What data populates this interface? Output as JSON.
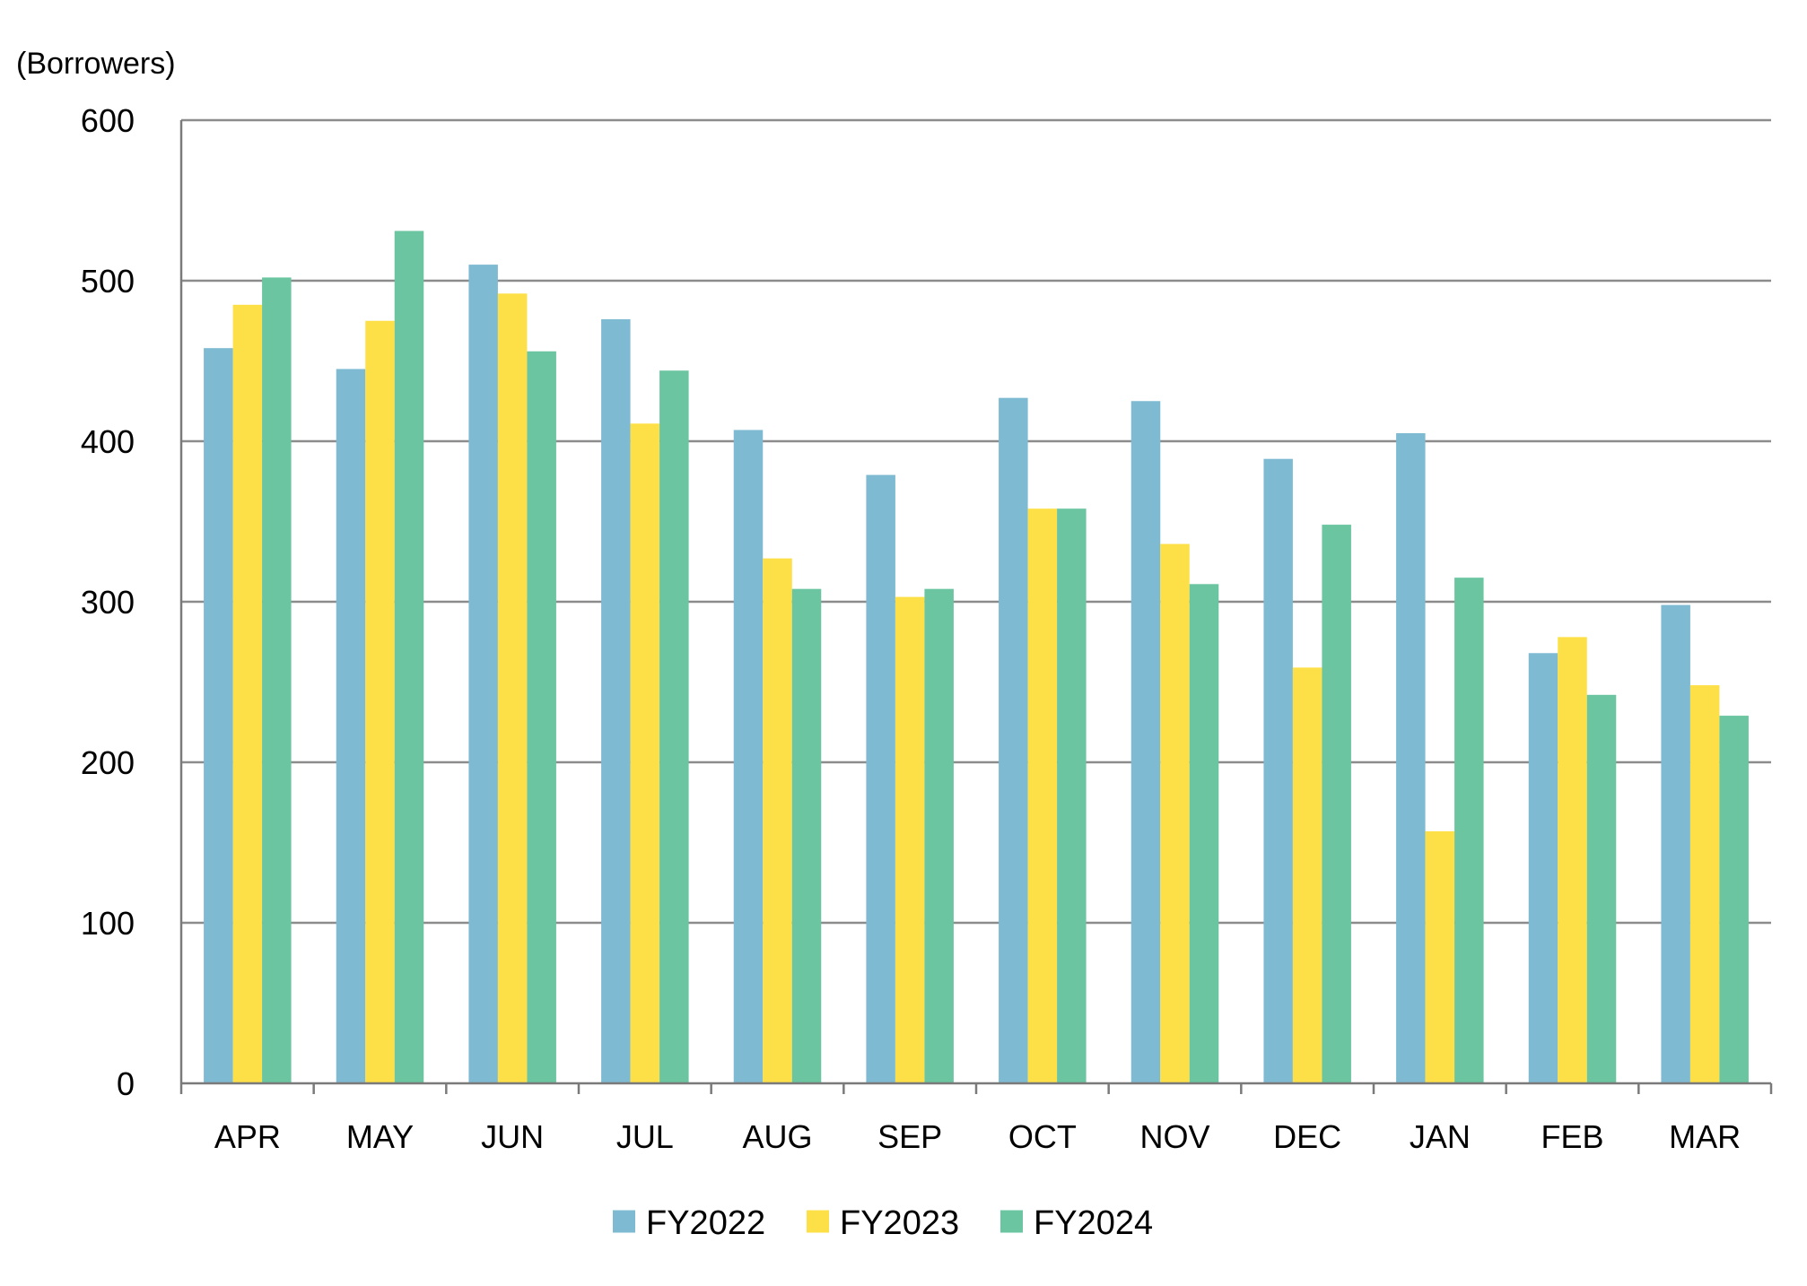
{
  "chart_data": {
    "type": "bar",
    "ylabel": "(Borrowers)",
    "ylim": [
      0,
      600
    ],
    "yticks": [
      0,
      100,
      200,
      300,
      400,
      500,
      600
    ],
    "grid": true,
    "legend_position": "bottom-center",
    "categories": [
      "APR",
      "MAY",
      "JUN",
      "JUL",
      "AUG",
      "SEP",
      "OCT",
      "NOV",
      "DEC",
      "JAN",
      "FEB",
      "MAR"
    ],
    "series": [
      {
        "name": "FY2022",
        "color": "#7FBAD3",
        "values": [
          458,
          445,
          510,
          476,
          407,
          379,
          427,
          425,
          389,
          405,
          268,
          298
        ]
      },
      {
        "name": "FY2023",
        "color": "#FDE047",
        "values": [
          485,
          475,
          492,
          411,
          327,
          303,
          358,
          336,
          259,
          157,
          278,
          248
        ]
      },
      {
        "name": "FY2024",
        "color": "#6AC5A0",
        "values": [
          502,
          531,
          456,
          444,
          308,
          308,
          358,
          311,
          348,
          315,
          242,
          229
        ]
      }
    ]
  }
}
